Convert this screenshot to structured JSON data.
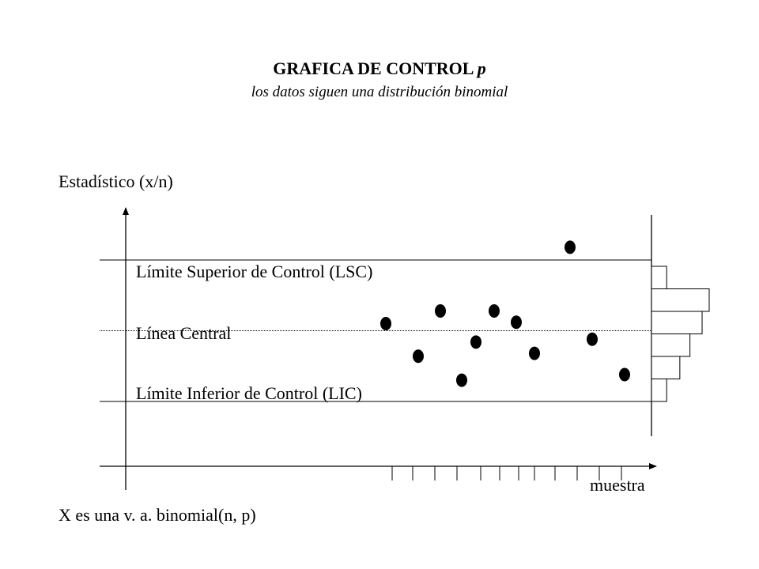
{
  "title": {
    "main": "GRAFICA DE CONTROL",
    "variable": "p",
    "subtitle": "los datos siguen una distribución binomial"
  },
  "y_axis_label": "Estadístico (x/n)",
  "x_axis_label": "muestra",
  "footer_note": "X es una v. a. binomial(n, p)",
  "limits": {
    "upper": "Límite Superior de Control (LSC)",
    "center": "Línea Central",
    "lower": "Límite Inferior de Control (LIC)"
  },
  "chart_data": {
    "type": "scatter",
    "title": "GRAFICA DE CONTROL p",
    "subtitle": "los datos siguen una distribución binomial",
    "xlabel": "muestra",
    "ylabel": "Estadístico (x/n)",
    "lines": {
      "lsc": 1.0,
      "center": 0.5,
      "lic": 0.0
    },
    "ylim": [
      -0.45,
      1.4
    ],
    "xlim": [
      0,
      13
    ],
    "points": [
      {
        "x": 1,
        "y": 0.55
      },
      {
        "x": 2,
        "y": 0.32
      },
      {
        "x": 3,
        "y": 0.64
      },
      {
        "x": 4,
        "y": 0.15
      },
      {
        "x": 5,
        "y": 0.42
      },
      {
        "x": 6,
        "y": 0.64
      },
      {
        "x": 7,
        "y": 0.56
      },
      {
        "x": 8,
        "y": 0.34
      },
      {
        "x": 9,
        "y": 1.09
      },
      {
        "x": 10,
        "y": 0.44
      },
      {
        "x": 11,
        "y": 0.19
      }
    ],
    "x_ticks": [
      1,
      2,
      3,
      4,
      5,
      6,
      7,
      8,
      9,
      10,
      11,
      12
    ],
    "histogram": [
      0.15,
      0.57,
      0.5,
      0.38,
      0.28,
      0.15
    ],
    "grid": false,
    "legend": "none"
  }
}
